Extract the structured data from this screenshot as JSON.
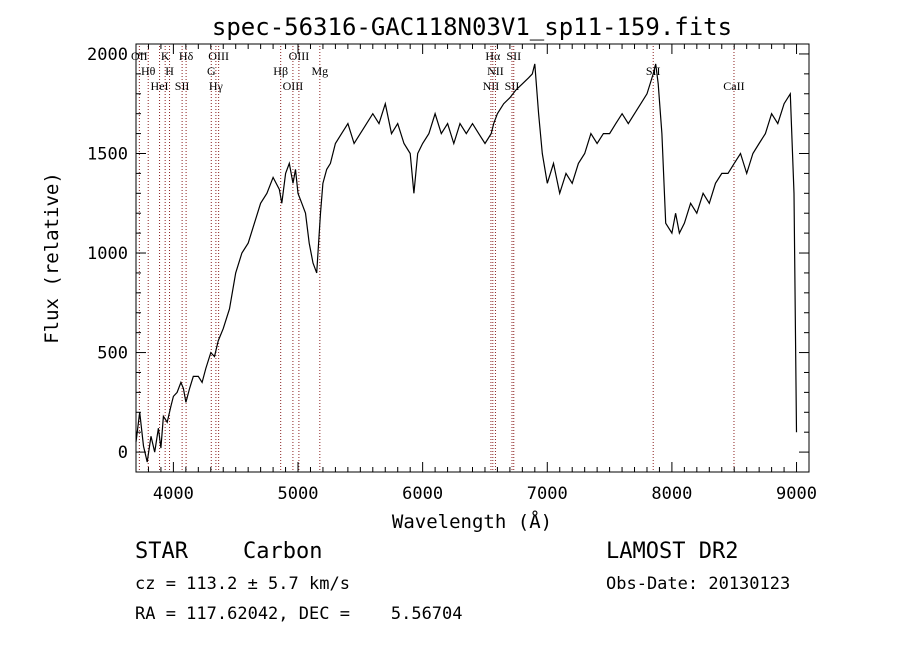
{
  "chart_data": {
    "type": "line",
    "title": "spec-56316-GAC118N03V1_sp11-159.fits",
    "xlabel": "Wavelength (Å)",
    "ylabel": "Flux (relative)",
    "xlim": [
      3700,
      9100
    ],
    "ylim": [
      -100,
      2050
    ],
    "x_ticks": [
      4000,
      5000,
      6000,
      7000,
      8000,
      9000
    ],
    "x_tick_labels": [
      "4000",
      "5000",
      "6000",
      "7000",
      "8000",
      "9000"
    ],
    "y_ticks": [
      0,
      500,
      1000,
      1500,
      2000
    ],
    "y_tick_labels": [
      "0",
      "500",
      "1000",
      "1500",
      "2000"
    ],
    "grid": false,
    "series": [
      {
        "color": "#000000",
        "x": [
          3700,
          3730,
          3760,
          3790,
          3820,
          3850,
          3880,
          3900,
          3920,
          3950,
          3980,
          4000,
          4030,
          4060,
          4080,
          4100,
          4130,
          4160,
          4200,
          4230,
          4260,
          4300,
          4330,
          4360,
          4400,
          4450,
          4500,
          4550,
          4600,
          4650,
          4700,
          4750,
          4800,
          4850,
          4870,
          4900,
          4930,
          4960,
          4980,
          5000,
          5030,
          5060,
          5090,
          5120,
          5150,
          5180,
          5200,
          5230,
          5260,
          5300,
          5350,
          5400,
          5450,
          5500,
          5550,
          5600,
          5650,
          5700,
          5750,
          5800,
          5850,
          5900,
          5930,
          5960,
          6000,
          6050,
          6100,
          6150,
          6200,
          6250,
          6300,
          6350,
          6400,
          6450,
          6500,
          6550,
          6570,
          6600,
          6650,
          6700,
          6750,
          6800,
          6850,
          6880,
          6900,
          6930,
          6960,
          7000,
          7050,
          7100,
          7150,
          7200,
          7250,
          7300,
          7350,
          7400,
          7450,
          7500,
          7550,
          7600,
          7650,
          7700,
          7750,
          7800,
          7850,
          7870,
          7890,
          7920,
          7950,
          8000,
          8030,
          8060,
          8100,
          8150,
          8200,
          8250,
          8300,
          8350,
          8400,
          8450,
          8500,
          8550,
          8600,
          8650,
          8700,
          8750,
          8800,
          8850,
          8900,
          8950,
          8980,
          9000
        ],
        "y": [
          50,
          200,
          30,
          -50,
          80,
          0,
          120,
          20,
          180,
          150,
          230,
          280,
          300,
          350,
          320,
          250,
          320,
          380,
          380,
          350,
          420,
          500,
          480,
          560,
          620,
          720,
          900,
          1000,
          1050,
          1150,
          1250,
          1300,
          1380,
          1320,
          1250,
          1400,
          1450,
          1350,
          1420,
          1300,
          1250,
          1200,
          1050,
          950,
          900,
          1200,
          1350,
          1420,
          1450,
          1550,
          1600,
          1650,
          1550,
          1600,
          1650,
          1700,
          1650,
          1750,
          1600,
          1650,
          1550,
          1500,
          1300,
          1500,
          1550,
          1600,
          1700,
          1600,
          1650,
          1550,
          1650,
          1600,
          1650,
          1600,
          1550,
          1600,
          1650,
          1700,
          1750,
          1780,
          1820,
          1850,
          1880,
          1900,
          1950,
          1700,
          1500,
          1350,
          1450,
          1300,
          1400,
          1350,
          1450,
          1500,
          1600,
          1550,
          1600,
          1600,
          1650,
          1700,
          1650,
          1700,
          1750,
          1800,
          1900,
          1950,
          1850,
          1600,
          1150,
          1100,
          1200,
          1100,
          1150,
          1250,
          1200,
          1300,
          1250,
          1350,
          1400,
          1400,
          1450,
          1500,
          1400,
          1500,
          1550,
          1600,
          1700,
          1650,
          1750,
          1800,
          1300,
          100
        ]
      }
    ],
    "lines": [
      {
        "x": 3727,
        "labels": [
          "OII"
        ]
      },
      {
        "x": 3798,
        "labels": [
          "Hθ"
        ]
      },
      {
        "x": 3889,
        "labels": [
          "HeI"
        ]
      },
      {
        "x": 3934,
        "labels": [
          "K"
        ]
      },
      {
        "x": 3969,
        "labels": [
          "H"
        ]
      },
      {
        "x": 4070,
        "labels": [
          "SII"
        ]
      },
      {
        "x": 4102,
        "labels": [
          "Hδ"
        ]
      },
      {
        "x": 4304,
        "labels": [
          "G"
        ]
      },
      {
        "x": 4341,
        "labels": [
          "Hγ"
        ]
      },
      {
        "x": 4363,
        "labels": [
          "OIII"
        ]
      },
      {
        "x": 4861,
        "labels": [
          "Hβ"
        ]
      },
      {
        "x": 4959,
        "labels": [
          "OIII"
        ]
      },
      {
        "x": 5007,
        "labels": [
          "OIII"
        ]
      },
      {
        "x": 5175,
        "labels": [
          "Mg"
        ]
      },
      {
        "x": 6548,
        "labels": [
          "NII"
        ]
      },
      {
        "x": 6563,
        "labels": [
          "Hα"
        ]
      },
      {
        "x": 6584,
        "labels": [
          "NII"
        ]
      },
      {
        "x": 6717,
        "labels": [
          "SII"
        ]
      },
      {
        "x": 6731,
        "labels": [
          "SII"
        ]
      },
      {
        "x": 7850,
        "labels": [
          "SII"
        ]
      },
      {
        "x": 8498,
        "labels": [
          "CaII"
        ]
      }
    ],
    "annotations": []
  },
  "info": {
    "class": "STAR",
    "subclass": "Carbon",
    "survey": "LAMOST DR2",
    "cz": "cz = 113.2 ± 5.7 km/s",
    "obs_date": "Obs-Date: 20130123",
    "radec": "RA = 117.62042, DEC =    5.56704"
  },
  "colors": {
    "line": "#000000",
    "marker": "#8b2020",
    "background": "#ffffff"
  }
}
